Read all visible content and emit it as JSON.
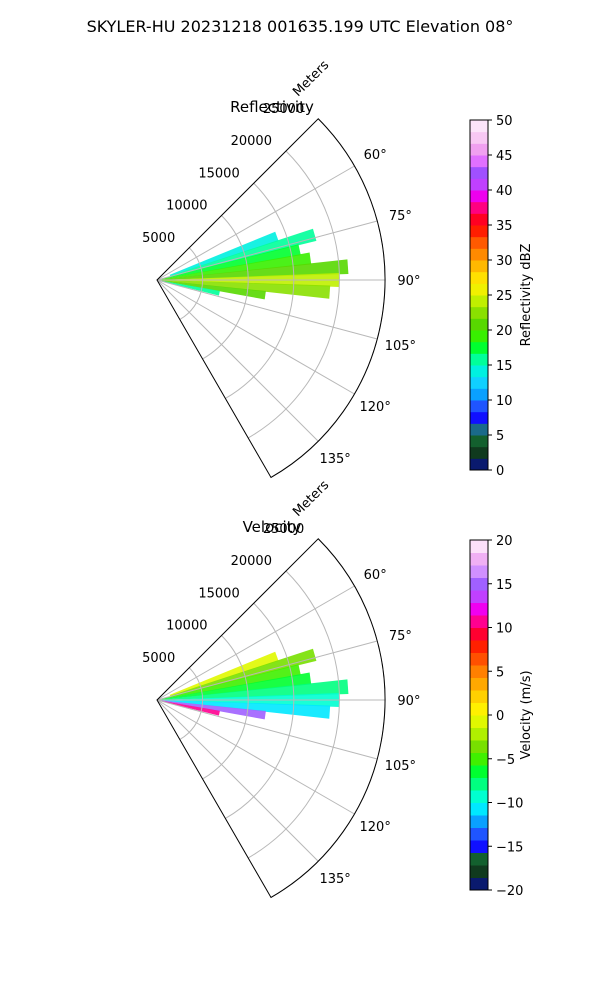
{
  "title": "SKYLER-HU  20231218  001635.199 UTC Elevation 08°",
  "chart_data": [
    {
      "type": "heatmap",
      "subtype": "polar-sector-ppi",
      "title": "Reflectivity",
      "range_axis_label": "Meters",
      "range_ticks": [
        5000,
        10000,
        15000,
        20000,
        25000
      ],
      "range_tick_labels": [
        "5000",
        "10000",
        "15000",
        "20000",
        "25000"
      ],
      "range_max": 25000,
      "azimuth_range_deg": [
        45,
        150
      ],
      "azimuth_ticks": [
        60,
        75,
        90,
        105,
        120,
        135
      ],
      "azimuth_tick_labels": [
        "60°",
        "75°",
        "90°",
        "105°",
        "120°",
        "135°"
      ],
      "grid": true,
      "colorbar": {
        "label": "Reflectivity dBZ",
        "min": 0,
        "max": 50,
        "ticks": [
          0,
          5,
          10,
          15,
          20,
          25,
          30,
          35,
          40,
          45,
          50
        ],
        "tick_labels": [
          "0",
          "5",
          "10",
          "15",
          "20",
          "25",
          "30",
          "35",
          "40",
          "45",
          "50"
        ],
        "colors": [
          "#0a1a6e",
          "#103a1e",
          "#13602e",
          "#1a6a8a",
          "#1010ff",
          "#1f55ff",
          "#0aa0ff",
          "#10d0ff",
          "#00f0e0",
          "#00ff9a",
          "#00ff30",
          "#38ef00",
          "#58d800",
          "#8ae000",
          "#c0ef00",
          "#f0f000",
          "#ffe000",
          "#ffb800",
          "#ff8a00",
          "#ff5a00",
          "#ff1e00",
          "#ff0022",
          "#ff0080",
          "#ee00ee",
          "#c040ff",
          "#a050ff",
          "#e070ff",
          "#f0a0f0",
          "#f8c8f4",
          "#fce4fa"
        ]
      },
      "echo": [
        {
          "az": 70,
          "r0": 1500,
          "r1": 14000,
          "v": 14
        },
        {
          "az": 74,
          "r0": 1500,
          "r1": 18000,
          "v": 16
        },
        {
          "az": 78,
          "r0": 500,
          "r1": 16000,
          "v": 17
        },
        {
          "az": 82,
          "r0": 300,
          "r1": 17000,
          "v": 19
        },
        {
          "az": 86,
          "r0": 200,
          "r1": 21000,
          "v": 20
        },
        {
          "az": 90,
          "r0": 100,
          "r1": 20000,
          "v": 24
        },
        {
          "az": 94,
          "r0": 200,
          "r1": 19000,
          "v": 22
        },
        {
          "az": 98,
          "r0": 300,
          "r1": 12000,
          "v": 20
        },
        {
          "az": 102,
          "r0": 500,
          "r1": 7000,
          "v": 15
        }
      ]
    },
    {
      "type": "heatmap",
      "subtype": "polar-sector-ppi",
      "title": "Velocity",
      "range_axis_label": "Meters",
      "range_ticks": [
        5000,
        10000,
        15000,
        20000,
        25000
      ],
      "range_tick_labels": [
        "5000",
        "10000",
        "15000",
        "20000",
        "25000"
      ],
      "range_max": 25000,
      "azimuth_range_deg": [
        45,
        150
      ],
      "azimuth_ticks": [
        60,
        75,
        90,
        105,
        120,
        135
      ],
      "azimuth_tick_labels": [
        "60°",
        "75°",
        "90°",
        "105°",
        "120°",
        "135°"
      ],
      "grid": true,
      "colorbar": {
        "label": "Velocity (m/s)",
        "min": -20,
        "max": 20,
        "ticks": [
          -20,
          -15,
          -10,
          -5,
          0,
          5,
          10,
          15,
          20
        ],
        "tick_labels": [
          "−20",
          "−15",
          "−10",
          "−5",
          "0",
          "5",
          "10",
          "15",
          "20"
        ],
        "colors": [
          "#0a1a6e",
          "#103a1e",
          "#13602e",
          "#1010ff",
          "#1f55ff",
          "#0aa0ff",
          "#00e8ff",
          "#00ffd0",
          "#00ff80",
          "#00ff30",
          "#40f000",
          "#78e000",
          "#b0ef00",
          "#e0f800",
          "#fff000",
          "#ffd000",
          "#ffa800",
          "#ff8000",
          "#ff5000",
          "#ff2000",
          "#ff0030",
          "#ff0090",
          "#f000f0",
          "#c040ff",
          "#a060ff",
          "#d090ff",
          "#f0b0f4",
          "#fce0fa"
        ]
      },
      "echo": [
        {
          "az": 70,
          "r0": 1500,
          "r1": 14000,
          "v": -1
        },
        {
          "az": 74,
          "r0": 1500,
          "r1": 18000,
          "v": -3
        },
        {
          "az": 78,
          "r0": 500,
          "r1": 16000,
          "v": -5
        },
        {
          "az": 82,
          "r0": 300,
          "r1": 17000,
          "v": -6
        },
        {
          "az": 86,
          "r0": 200,
          "r1": 21000,
          "v": -8
        },
        {
          "az": 90,
          "r0": 100,
          "r1": 20000,
          "v": -10
        },
        {
          "az": 94,
          "r0": 200,
          "r1": 19000,
          "v": -11
        },
        {
          "az": 98,
          "r0": 300,
          "r1": 12000,
          "v": 15
        },
        {
          "az": 102,
          "r0": 500,
          "r1": 7000,
          "v": 10
        }
      ]
    }
  ]
}
